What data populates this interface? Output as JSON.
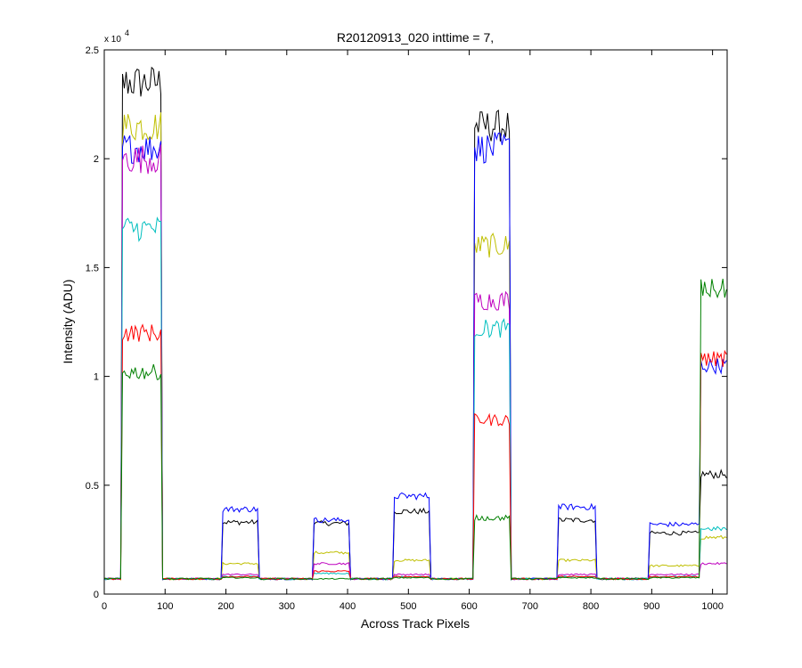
{
  "chart_data": {
    "type": "line",
    "title": "R20120913_020 inttime = 7,",
    "xlabel": "Across Track Pixels",
    "ylabel": "Intensity (ADU)",
    "y_exponent_label": "x 10",
    "y_exponent_power": "4",
    "xlim": [
      0,
      1024
    ],
    "ylim": [
      0,
      25000
    ],
    "x_ticks": [
      0,
      100,
      200,
      300,
      400,
      500,
      600,
      700,
      800,
      900,
      1000
    ],
    "y_ticks": [
      0,
      5000,
      10000,
      15000,
      20000,
      25000
    ],
    "y_tick_labels": [
      "0",
      "0.5",
      "1",
      "1.5",
      "2",
      "2.5"
    ],
    "x_tick_labels": [
      "0",
      "100",
      "200",
      "300",
      "400",
      "500",
      "600",
      "700",
      "800",
      "900",
      "1000"
    ],
    "grid": false,
    "baseline": 700,
    "x_noise_step": 3,
    "panels": [
      {
        "x0": 30,
        "x1": 95
      },
      {
        "x0": 195,
        "x1": 255
      },
      {
        "x0": 345,
        "x1": 405
      },
      {
        "x0": 475,
        "x1": 535
      },
      {
        "x0": 607,
        "x1": 667
      },
      {
        "x0": 745,
        "x1": 810
      },
      {
        "x0": 897,
        "x1": 980
      },
      {
        "x0": 980,
        "x1": 1024
      }
    ],
    "series": [
      {
        "color": "#000000",
        "levels": [
          23500,
          3300,
          3250,
          3800,
          21500,
          3400,
          2800,
          5500
        ]
      },
      {
        "color": "#bfbf00",
        "levels": [
          21500,
          1400,
          1900,
          1550,
          16000,
          1550,
          1300,
          2600
        ]
      },
      {
        "color": "#0000ff",
        "levels": [
          20500,
          3900,
          3400,
          4500,
          20500,
          4000,
          3200,
          10500
        ]
      },
      {
        "color": "#bf00bf",
        "levels": [
          20000,
          900,
          1400,
          900,
          13500,
          900,
          900,
          1400
        ]
      },
      {
        "color": "#00bfbf",
        "levels": [
          16800,
          800,
          950,
          800,
          12200,
          800,
          800,
          3000
        ]
      },
      {
        "color": "#ff0000",
        "levels": [
          12000,
          800,
          1050,
          800,
          8000,
          800,
          800,
          10800
        ]
      },
      {
        "color": "#008000",
        "levels": [
          10200,
          750,
          700,
          750,
          3500,
          750,
          750,
          14000
        ]
      }
    ]
  }
}
